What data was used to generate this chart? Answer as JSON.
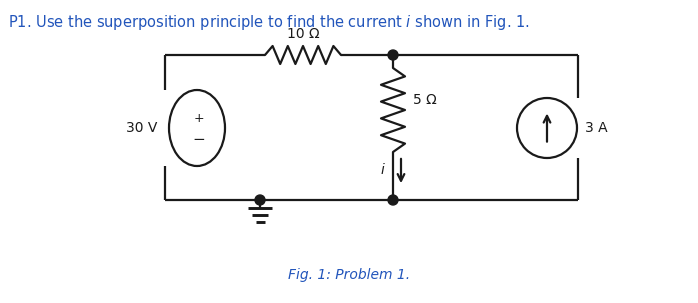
{
  "title_pre": "P1. Use the superposition principle to find the current ",
  "title_i": "i",
  "title_post": " shown in Fig. 1.",
  "fig_caption": "Fig. 1: Problem 1.",
  "voltage_source_label": "30 V",
  "current_source_label": "3 A",
  "resistor1_label": "10 Ω",
  "resistor2_label": "5 Ω",
  "current_label": "i",
  "bg_color": "#ffffff",
  "circuit_color": "#1a1a1a",
  "blue_color": "#2255bb",
  "line_width": 1.6,
  "title_fontsize": 10.5,
  "label_fontsize": 10,
  "caption_fontsize": 10
}
